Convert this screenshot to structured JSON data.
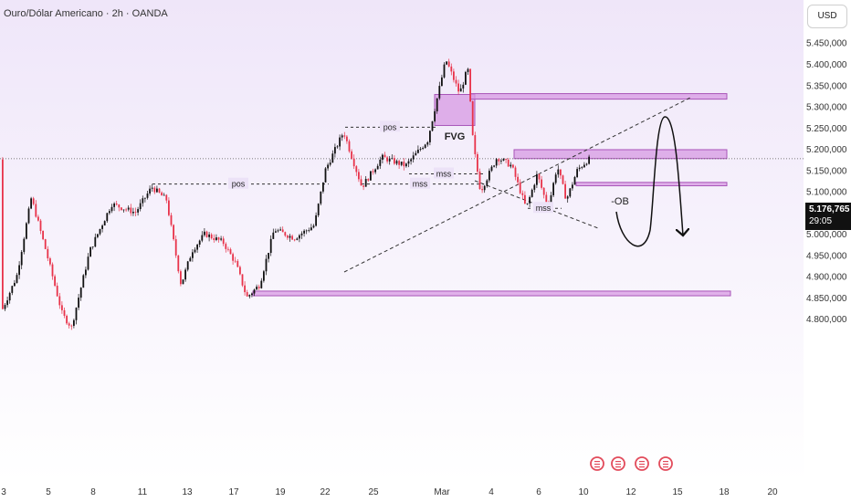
{
  "header": {
    "title": "Ouro/Dólar Americano · 2h · OANDA",
    "currency_button": "USD"
  },
  "current_price": {
    "value": "5.176,765",
    "countdown": "29:05"
  },
  "colors": {
    "background_top": "#efe6f9",
    "background_bottom": "#ffffff",
    "candle_up": "#111111",
    "candle_down": "#e8334a",
    "zone_fill": "#d79ae3",
    "zone_stroke": "#a855b8"
  },
  "chart_data": {
    "type": "candlestick",
    "x_tick_labels": [
      "3",
      "5",
      "8",
      "11",
      "13",
      "17",
      "19",
      "22",
      "25",
      "Mar",
      "4",
      "6",
      "10",
      "12",
      "15",
      "18",
      "20"
    ],
    "y_tick_labels": [
      "4.800,000",
      "4.850,000",
      "4.900,000",
      "4.950,000",
      "5.000,000",
      "5.050,000",
      "5.100,000",
      "5.150,000",
      "5.200,000",
      "5.250,000",
      "5.300,000",
      "5.350,000",
      "5.400,000",
      "5.450,000"
    ],
    "ylim": [
      4780,
      5470
    ],
    "annotations": [
      "FVG",
      "-OB",
      "pos",
      "pos",
      "mss",
      "mss",
      "mss"
    ],
    "zones": [
      {
        "label": "FVG",
        "y_low": 5255,
        "y_high": 5328
      },
      {
        "label": "",
        "y_low": 5317,
        "y_high": 5330
      },
      {
        "label": "-OB",
        "y_low": 5177,
        "y_high": 5198
      },
      {
        "label": "",
        "y_low": 5113,
        "y_high": 5121
      },
      {
        "label": "",
        "y_low": 4854,
        "y_high": 4865
      }
    ],
    "reference_levels": [
      {
        "label": "pos",
        "y": 5117
      },
      {
        "label": "pos",
        "y": 5251
      },
      {
        "label": "mss",
        "y": 5141
      },
      {
        "label": "mss",
        "y": 5117
      },
      {
        "label": "mss",
        "y": 5060
      }
    ],
    "current_price": 5176.765
  }
}
